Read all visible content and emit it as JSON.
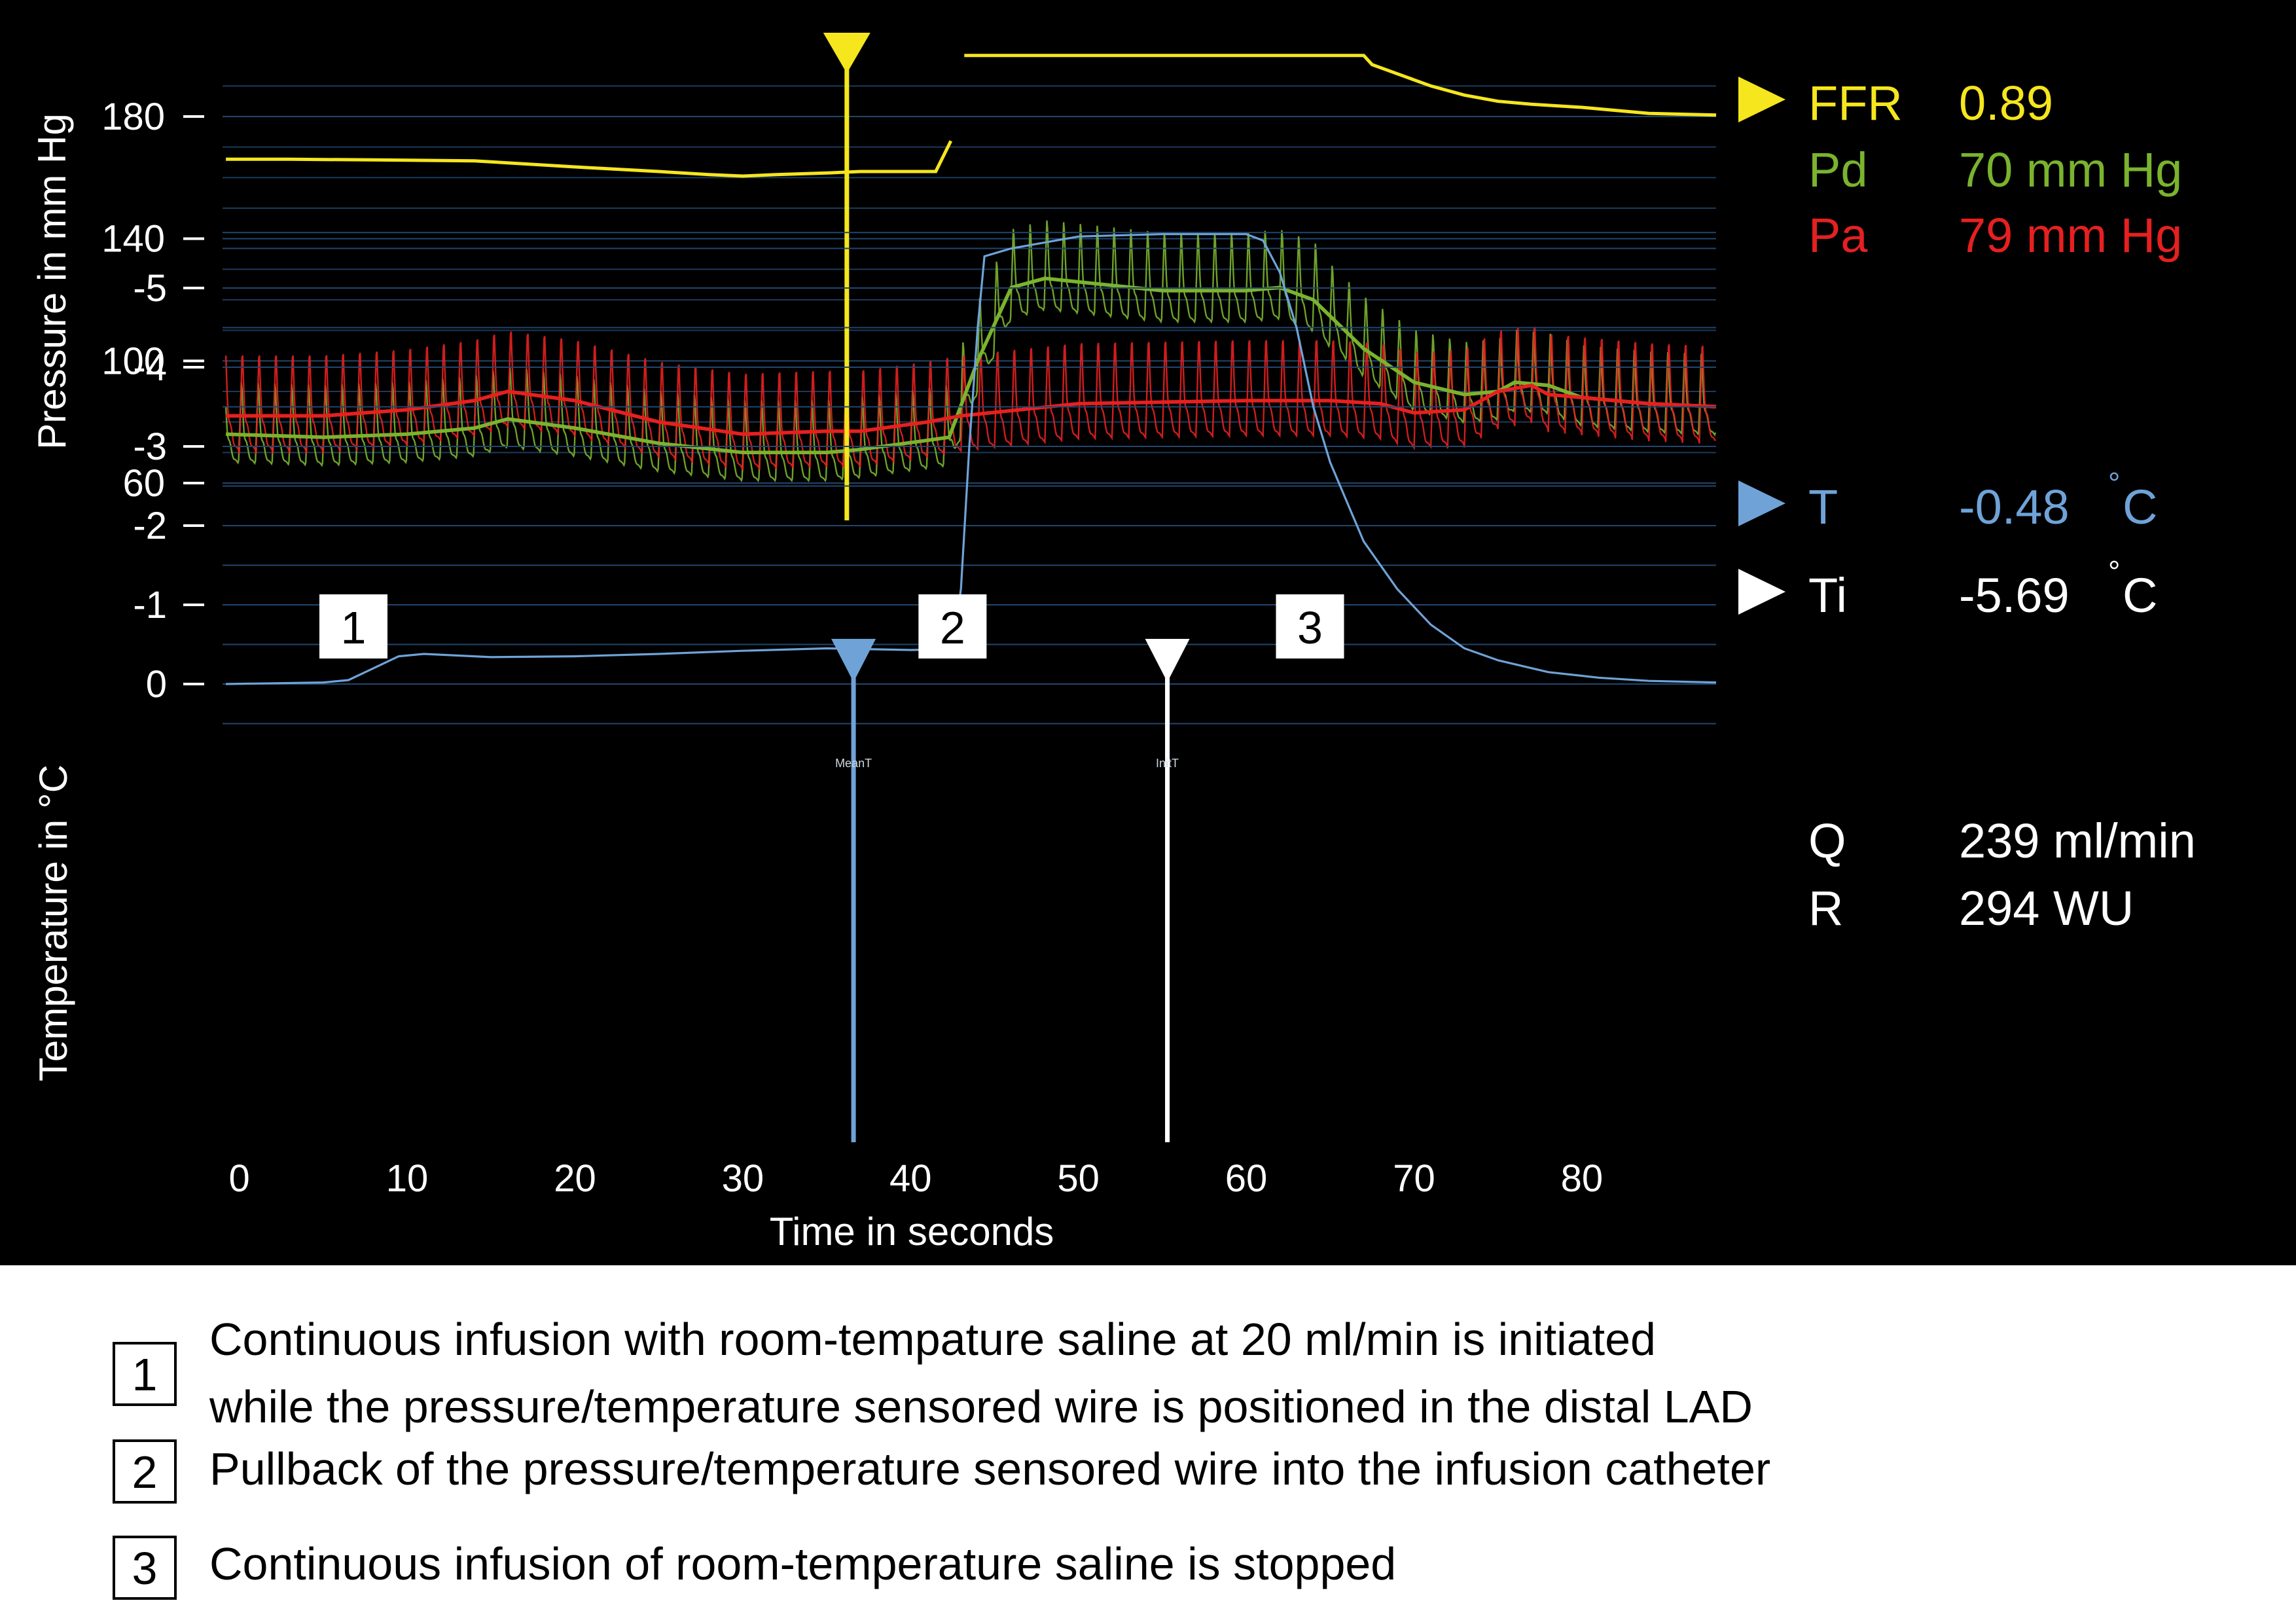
{
  "chart_data": [
    {
      "type": "line",
      "ylabel": "Pressure in mm Hg",
      "yticks": [
        60,
        100,
        140,
        180
      ],
      "ylim": [
        55,
        200
      ],
      "xlim": [
        -1,
        88
      ],
      "grid": "horizontal",
      "series": [
        {
          "name": "FFR",
          "color": "#f5e61e",
          "points": [
            [
              -0.8,
              166
            ],
            [
              3,
              166
            ],
            [
              8,
              165.8
            ],
            [
              14,
              165.5
            ],
            [
              20,
              163.5
            ],
            [
              25,
              162
            ],
            [
              28,
              161
            ],
            [
              30,
              160.5
            ],
            [
              32,
              161
            ],
            [
              35,
              161.5
            ],
            [
              37,
              162
            ],
            [
              41.5,
              162
            ],
            [
              42.4,
              172
            ],
            [
              42.8,
              185
            ],
            [
              43.2,
              200
            ],
            [
              67,
              200
            ],
            [
              67.5,
              197
            ],
            [
              69,
              194
            ],
            [
              71,
              190
            ],
            [
              73,
              187
            ],
            [
              75,
              185
            ],
            [
              77,
              184
            ],
            [
              80,
              183
            ],
            [
              84,
              181
            ],
            [
              88,
              180.5
            ]
          ]
        },
        {
          "name": "Pd",
          "color": "#7ab32e",
          "mean": [
            [
              -0.8,
              76
            ],
            [
              5,
              75
            ],
            [
              10,
              76
            ],
            [
              14,
              78
            ],
            [
              16,
              81
            ],
            [
              20,
              78
            ],
            [
              25,
              73
            ],
            [
              30,
              70
            ],
            [
              35,
              70
            ],
            [
              37,
              71
            ],
            [
              41,
              74
            ],
            [
              42.3,
              75
            ],
            [
              44,
              100
            ],
            [
              46,
              124
            ],
            [
              48,
              127
            ],
            [
              55,
              123
            ],
            [
              60,
              123
            ],
            [
              62,
              124
            ],
            [
              64,
              120
            ],
            [
              67,
              104
            ],
            [
              70,
              93
            ],
            [
              73,
              89
            ],
            [
              75,
              90
            ],
            [
              76,
              93
            ],
            [
              78,
              92
            ],
            [
              80,
              88
            ],
            [
              84,
              86
            ],
            [
              88,
              85
            ]
          ],
          "amplitude": 18
        },
        {
          "name": "Pa",
          "color": "#e62020",
          "mean": [
            [
              -0.8,
              82
            ],
            [
              5,
              82
            ],
            [
              10,
              84
            ],
            [
              14,
              87
            ],
            [
              16,
              90
            ],
            [
              20,
              87
            ],
            [
              25,
              80
            ],
            [
              30,
              76
            ],
            [
              35,
              77
            ],
            [
              37,
              77
            ],
            [
              41,
              80
            ],
            [
              43,
              82
            ],
            [
              50,
              86
            ],
            [
              60,
              87
            ],
            [
              65,
              87
            ],
            [
              68,
              86
            ],
            [
              70,
              83
            ],
            [
              73,
              84
            ],
            [
              75,
              90
            ],
            [
              77,
              92
            ],
            [
              78,
              89
            ],
            [
              80,
              88
            ],
            [
              84,
              86
            ],
            [
              88,
              85
            ]
          ],
          "amplitude": 22
        }
      ],
      "marker_x": 36.2
    },
    {
      "type": "line",
      "ylabel": "Temperature in °C",
      "yticks": [
        "0",
        "-1",
        "-2",
        "-3",
        "-4",
        "-5"
      ],
      "ylim": [
        -5.9,
        0.5
      ],
      "xlabel": "Time in seconds",
      "xticks": [
        0,
        10,
        20,
        30,
        40,
        50,
        60,
        70,
        80
      ],
      "xlim": [
        -1,
        88
      ],
      "grid": "horizontal",
      "series": [
        {
          "name": "T",
          "color": "#6fa3d8",
          "points": [
            [
              -0.8,
              0
            ],
            [
              5,
              -0.02
            ],
            [
              6.5,
              -0.05
            ],
            [
              8,
              -0.2
            ],
            [
              9.5,
              -0.35
            ],
            [
              11,
              -0.38
            ],
            [
              15,
              -0.34
            ],
            [
              20,
              -0.35
            ],
            [
              25,
              -0.38
            ],
            [
              30,
              -0.42
            ],
            [
              35,
              -0.45
            ],
            [
              40,
              -0.43
            ],
            [
              42.5,
              -0.44
            ],
            [
              43,
              -1.2
            ],
            [
              43.5,
              -3
            ],
            [
              44,
              -4.5
            ],
            [
              44.4,
              -5.4
            ],
            [
              46,
              -5.5
            ],
            [
              50,
              -5.65
            ],
            [
              55,
              -5.68
            ],
            [
              60,
              -5.68
            ],
            [
              61,
              -5.6
            ],
            [
              62,
              -5.2
            ],
            [
              63,
              -4.5
            ],
            [
              64,
              -3.5
            ],
            [
              65,
              -2.8
            ],
            [
              66,
              -2.3
            ],
            [
              67,
              -1.8
            ],
            [
              69,
              -1.2
            ],
            [
              71,
              -0.75
            ],
            [
              73,
              -0.45
            ],
            [
              75,
              -0.3
            ],
            [
              78,
              -0.15
            ],
            [
              81,
              -0.08
            ],
            [
              84,
              -0.04
            ],
            [
              88,
              -0.02
            ]
          ]
        }
      ],
      "markers": [
        {
          "x": 36.6,
          "label": "MeanT",
          "color": "#6fa3d8"
        },
        {
          "x": 55.3,
          "label": "InitT",
          "color": "#ffffff"
        }
      ],
      "phase_boxes": [
        {
          "x": 6.8,
          "label": "1"
        },
        {
          "x": 42.5,
          "label": "2"
        },
        {
          "x": 63.8,
          "label": "3"
        }
      ]
    }
  ],
  "readouts": [
    {
      "name": "FFR",
      "value": "0.89",
      "color": "#f5e61e",
      "arrow": true
    },
    {
      "name": "Pd",
      "value": "70 mm Hg",
      "color": "#7ab32e",
      "arrow": false
    },
    {
      "name": "Pa",
      "value": "79 mm Hg",
      "color": "#e62020",
      "arrow": false
    },
    {
      "name": "T",
      "value": "-0.48",
      "unit": "C",
      "color": "#6fa3d8",
      "arrow": true
    },
    {
      "name": "Ti",
      "value": "-5.69",
      "unit": "C",
      "color": "#ffffff",
      "arrow": true
    },
    {
      "name": "Q",
      "value": "239 ml/min",
      "color": "#ffffff",
      "arrow": false
    },
    {
      "name": "R",
      "value": "294 WU",
      "color": "#ffffff",
      "arrow": false
    }
  ],
  "legend": [
    {
      "num": "1",
      "lines": [
        "Continuous infusion with room-tempature saline at 20 ml/min is initiated",
        "while the pressure/temperature sensored wire is positioned in the distal LAD"
      ]
    },
    {
      "num": "2",
      "lines": [
        "Pullback of the pressure/temperature sensored wire into the infusion catheter"
      ]
    },
    {
      "num": "3",
      "lines": [
        "Continuous infusion of room-temperature saline is stopped"
      ]
    }
  ]
}
